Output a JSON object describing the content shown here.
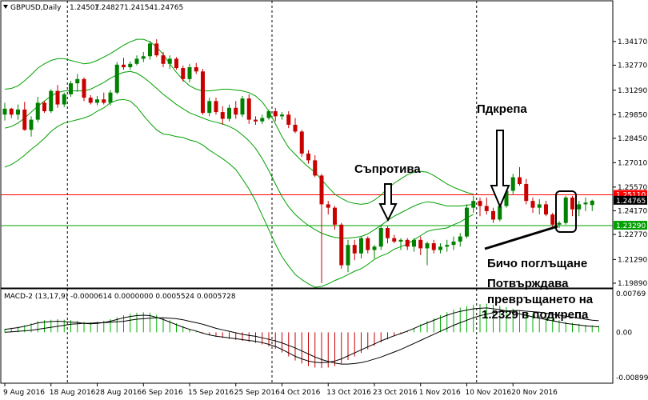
{
  "chart_data": [
    {
      "type": "candlestick",
      "header": {
        "symbol": "GBPUSD,Daily",
        "open": "1.24507",
        "high": "1.24827",
        "low": "1.24154",
        "close": "1.24765"
      },
      "ylim": [
        1.1989,
        1.3525
      ],
      "y_ticks": [
        "1.34170",
        "1.32770",
        "1.31290",
        "1.29850",
        "1.28450",
        "1.27010",
        "1.25570",
        "1.24170",
        "1.22770",
        "1.21290",
        "1.19890"
      ],
      "x_ticks": [
        "9 Aug 2016",
        "18 Aug 2016",
        "28 Aug 2016",
        "6 Sep 2016",
        "15 Sep 2016",
        "25 Sep 2016",
        "4 Oct 2016",
        "13 Oct 2016",
        "23 Oct 2016",
        "1 Nov 2016",
        "10 Nov 2016",
        "20 Nov 2016"
      ],
      "price_labels": [
        {
          "label": "1.25110",
          "value": 1.2511,
          "color": "#ff0000"
        },
        {
          "label": "1.24765",
          "value": 1.24765,
          "color": "#000000"
        },
        {
          "label": "1.23290",
          "value": 1.2329,
          "color": "#00a000"
        }
      ],
      "horizontal_lines": [
        {
          "value": 1.2511,
          "color": "#ff0000"
        },
        {
          "value": 1.2329,
          "color": "#00a000"
        }
      ],
      "bollinger": {
        "color": "#00a000",
        "upper": [
          1.3135,
          1.314,
          1.3155,
          1.3185,
          1.322,
          1.326,
          1.3285,
          1.3305,
          1.3315,
          1.3315,
          1.3305,
          1.3295,
          1.3285,
          1.329,
          1.3305,
          1.3325,
          1.3345,
          1.337,
          1.3395,
          1.3415,
          1.343,
          1.343,
          1.3415,
          1.3385,
          1.334,
          1.3285,
          1.3235,
          1.319,
          1.3155,
          1.3135,
          1.3125,
          1.3125,
          1.313,
          1.3135,
          1.3135,
          1.313,
          1.3125,
          1.3115,
          1.3095,
          1.306,
          1.3005,
          1.293,
          1.2855,
          1.279,
          1.275,
          1.271,
          1.2675,
          1.2645,
          1.26,
          1.2555,
          1.2515,
          1.249,
          1.247,
          1.246,
          1.2455,
          1.246,
          1.248,
          1.251,
          1.255,
          1.258,
          1.2605,
          1.263,
          1.2645,
          1.265,
          1.2645,
          1.2625,
          1.26,
          1.2575,
          1.2555,
          1.254,
          1.2525,
          1.2515
        ],
        "middle": [
          1.2905,
          1.2915,
          1.2935,
          1.2965,
          1.3,
          1.3035,
          1.3065,
          1.3095,
          1.3115,
          1.3125,
          1.3125,
          1.3125,
          1.3125,
          1.3135,
          1.3155,
          1.3175,
          1.32,
          1.322,
          1.3235,
          1.324,
          1.323,
          1.3205,
          1.3175,
          1.314,
          1.3105,
          1.3075,
          1.3045,
          1.302,
          1.2995,
          1.298,
          1.2965,
          1.295,
          1.294,
          1.293,
          1.2915,
          1.2895,
          1.2865,
          1.283,
          1.2785,
          1.2725,
          1.2655,
          1.2575,
          1.25,
          1.244,
          1.2395,
          1.236,
          1.233,
          1.2305,
          1.2285,
          1.227,
          1.226,
          1.2255,
          1.2255,
          1.226,
          1.2265,
          1.228,
          1.2305,
          1.233,
          1.236,
          1.2385,
          1.2405,
          1.2425,
          1.2445,
          1.246,
          1.247,
          1.2465,
          1.2455,
          1.2445,
          1.2445,
          1.2445,
          1.245,
          1.2455
        ],
        "lower": [
          1.2675,
          1.269,
          1.2715,
          1.2745,
          1.278,
          1.281,
          1.2845,
          1.2885,
          1.2915,
          1.2935,
          1.2945,
          1.2955,
          1.2965,
          1.298,
          1.3005,
          1.3025,
          1.3055,
          1.307,
          1.3075,
          1.3065,
          1.303,
          1.298,
          1.2935,
          1.2895,
          1.287,
          1.2865,
          1.2855,
          1.285,
          1.2835,
          1.2825,
          1.2805,
          1.2775,
          1.275,
          1.2725,
          1.2695,
          1.266,
          1.2605,
          1.2545,
          1.2475,
          1.239,
          1.2305,
          1.222,
          1.2145,
          1.209,
          1.204,
          1.201,
          1.1985,
          1.1965,
          1.197,
          1.1985,
          1.2005,
          1.202,
          1.204,
          1.206,
          1.2075,
          1.21,
          1.213,
          1.215,
          1.2165,
          1.219,
          1.2205,
          1.222,
          1.2245,
          1.227,
          1.2295,
          1.2305,
          1.231,
          1.2315,
          1.2335,
          1.235,
          1.2375,
          1.2395
        ]
      },
      "candles": [
        {
          "o": 1.2985,
          "h": 1.3055,
          "l": 1.295,
          "c": 1.302
        },
        {
          "o": 1.302,
          "h": 1.3025,
          "l": 1.2965,
          "c": 1.2985
        },
        {
          "o": 1.2985,
          "h": 1.3045,
          "l": 1.2955,
          "c": 1.3015
        },
        {
          "o": 1.3015,
          "h": 1.306,
          "l": 1.289,
          "c": 1.2895
        },
        {
          "o": 1.2895,
          "h": 1.2975,
          "l": 1.2855,
          "c": 1.2955
        },
        {
          "o": 1.2955,
          "h": 1.309,
          "l": 1.294,
          "c": 1.3055
        },
        {
          "o": 1.3055,
          "h": 1.3065,
          "l": 1.2995,
          "c": 1.3005
        },
        {
          "o": 1.3005,
          "h": 1.3135,
          "l": 1.2995,
          "c": 1.3125
        },
        {
          "o": 1.3125,
          "h": 1.316,
          "l": 1.3025,
          "c": 1.3045
        },
        {
          "o": 1.3045,
          "h": 1.3115,
          "l": 1.303,
          "c": 1.3105
        },
        {
          "o": 1.3105,
          "h": 1.3185,
          "l": 1.309,
          "c": 1.317
        },
        {
          "o": 1.317,
          "h": 1.3225,
          "l": 1.312,
          "c": 1.3195
        },
        {
          "o": 1.3195,
          "h": 1.3205,
          "l": 1.3065,
          "c": 1.3085
        },
        {
          "o": 1.3085,
          "h": 1.31,
          "l": 1.3045,
          "c": 1.3055
        },
        {
          "o": 1.3055,
          "h": 1.3095,
          "l": 1.304,
          "c": 1.3075
        },
        {
          "o": 1.3075,
          "h": 1.3115,
          "l": 1.3045,
          "c": 1.3055
        },
        {
          "o": 1.3055,
          "h": 1.313,
          "l": 1.304,
          "c": 1.3115
        },
        {
          "o": 1.3115,
          "h": 1.3295,
          "l": 1.3105,
          "c": 1.328
        },
        {
          "o": 1.328,
          "h": 1.332,
          "l": 1.325,
          "c": 1.3265
        },
        {
          "o": 1.3265,
          "h": 1.33,
          "l": 1.325,
          "c": 1.3285
        },
        {
          "o": 1.3285,
          "h": 1.3335,
          "l": 1.3275,
          "c": 1.3315
        },
        {
          "o": 1.3315,
          "h": 1.3355,
          "l": 1.3295,
          "c": 1.333
        },
        {
          "o": 1.333,
          "h": 1.342,
          "l": 1.331,
          "c": 1.3405
        },
        {
          "o": 1.3405,
          "h": 1.343,
          "l": 1.3325,
          "c": 1.3335
        },
        {
          "o": 1.3335,
          "h": 1.3355,
          "l": 1.3265,
          "c": 1.3285
        },
        {
          "o": 1.3285,
          "h": 1.3335,
          "l": 1.3255,
          "c": 1.3315
        },
        {
          "o": 1.3315,
          "h": 1.3325,
          "l": 1.325,
          "c": 1.326
        },
        {
          "o": 1.326,
          "h": 1.3275,
          "l": 1.318,
          "c": 1.3195
        },
        {
          "o": 1.3195,
          "h": 1.3285,
          "l": 1.3175,
          "c": 1.3265
        },
        {
          "o": 1.3265,
          "h": 1.329,
          "l": 1.3225,
          "c": 1.324
        },
        {
          "o": 1.324,
          "h": 1.3255,
          "l": 1.2985,
          "c": 1.2995
        },
        {
          "o": 1.2995,
          "h": 1.3085,
          "l": 1.2975,
          "c": 1.3065
        },
        {
          "o": 1.3065,
          "h": 1.3085,
          "l": 1.2985,
          "c": 1.3
        },
        {
          "o": 1.3,
          "h": 1.3035,
          "l": 1.2925,
          "c": 1.296
        },
        {
          "o": 1.296,
          "h": 1.3045,
          "l": 1.2945,
          "c": 1.3025
        },
        {
          "o": 1.3025,
          "h": 1.3065,
          "l": 1.296,
          "c": 1.2985
        },
        {
          "o": 1.2985,
          "h": 1.3095,
          "l": 1.297,
          "c": 1.308
        },
        {
          "o": 1.308,
          "h": 1.3105,
          "l": 1.293,
          "c": 1.2955
        },
        {
          "o": 1.2955,
          "h": 1.2975,
          "l": 1.2925,
          "c": 1.2945
        },
        {
          "o": 1.2945,
          "h": 1.2985,
          "l": 1.293,
          "c": 1.2965
        },
        {
          "o": 1.2965,
          "h": 1.3015,
          "l": 1.2955,
          "c": 1.3005
        },
        {
          "o": 1.3005,
          "h": 1.3025,
          "l": 1.2945,
          "c": 1.2975
        },
        {
          "o": 1.2975,
          "h": 1.3,
          "l": 1.2955,
          "c": 1.2985
        },
        {
          "o": 1.2985,
          "h": 1.3005,
          "l": 1.2905,
          "c": 1.2925
        },
        {
          "o": 1.2925,
          "h": 1.2965,
          "l": 1.2875,
          "c": 1.2885
        },
        {
          "o": 1.2885,
          "h": 1.2895,
          "l": 1.2735,
          "c": 1.2755
        },
        {
          "o": 1.2755,
          "h": 1.2775,
          "l": 1.2695,
          "c": 1.2715
        },
        {
          "o": 1.2715,
          "h": 1.2745,
          "l": 1.2615,
          "c": 1.2625
        },
        {
          "o": 1.2625,
          "h": 1.2635,
          "l": 1.1989,
          "c": 1.2455
        },
        {
          "o": 1.2455,
          "h": 1.2475,
          "l": 1.2395,
          "c": 1.2435
        },
        {
          "o": 1.2435,
          "h": 1.2445,
          "l": 1.2305,
          "c": 1.2335
        },
        {
          "o": 1.2335,
          "h": 1.2345,
          "l": 1.2075,
          "c": 1.2095
        },
        {
          "o": 1.2095,
          "h": 1.2245,
          "l": 1.2055,
          "c": 1.2215
        },
        {
          "o": 1.2215,
          "h": 1.2245,
          "l": 1.2125,
          "c": 1.2165
        },
        {
          "o": 1.2165,
          "h": 1.2265,
          "l": 1.2135,
          "c": 1.2255
        },
        {
          "o": 1.2255,
          "h": 1.2265,
          "l": 1.2165,
          "c": 1.2185
        },
        {
          "o": 1.2185,
          "h": 1.2215,
          "l": 1.2135,
          "c": 1.2205
        },
        {
          "o": 1.2205,
          "h": 1.2335,
          "l": 1.2185,
          "c": 1.2315
        },
        {
          "o": 1.2315,
          "h": 1.2325,
          "l": 1.2225,
          "c": 1.2255
        },
        {
          "o": 1.2255,
          "h": 1.2275,
          "l": 1.2225,
          "c": 1.2235
        },
        {
          "o": 1.2235,
          "h": 1.2255,
          "l": 1.2185,
          "c": 1.2245
        },
        {
          "o": 1.2245,
          "h": 1.2255,
          "l": 1.2185,
          "c": 1.2205
        },
        {
          "o": 1.2205,
          "h": 1.2255,
          "l": 1.2175,
          "c": 1.2245
        },
        {
          "o": 1.2245,
          "h": 1.2265,
          "l": 1.2155,
          "c": 1.2195
        },
        {
          "o": 1.2195,
          "h": 1.2235,
          "l": 1.2095,
          "c": 1.2225
        },
        {
          "o": 1.2225,
          "h": 1.2245,
          "l": 1.2165,
          "c": 1.2185
        },
        {
          "o": 1.2185,
          "h": 1.2225,
          "l": 1.2165,
          "c": 1.2205
        },
        {
          "o": 1.2205,
          "h": 1.2245,
          "l": 1.2175,
          "c": 1.2215
        },
        {
          "o": 1.2215,
          "h": 1.2265,
          "l": 1.2185,
          "c": 1.2235
        },
        {
          "o": 1.2235,
          "h": 1.2285,
          "l": 1.2205,
          "c": 1.2265
        },
        {
          "o": 1.2265,
          "h": 1.2455,
          "l": 1.2255,
          "c": 1.2435
        },
        {
          "o": 1.2435,
          "h": 1.2505,
          "l": 1.2405,
          "c": 1.2475
        },
        {
          "o": 1.2475,
          "h": 1.2495,
          "l": 1.2385,
          "c": 1.2445
        },
        {
          "o": 1.2445,
          "h": 1.2495,
          "l": 1.2395,
          "c": 1.2415
        },
        {
          "o": 1.2415,
          "h": 1.2435,
          "l": 1.2345,
          "c": 1.2365
        },
        {
          "o": 1.2365,
          "h": 1.2465,
          "l": 1.2355,
          "c": 1.2445
        },
        {
          "o": 1.2445,
          "h": 1.2545,
          "l": 1.2435,
          "c": 1.2535
        },
        {
          "o": 1.2535,
          "h": 1.2635,
          "l": 1.2515,
          "c": 1.2615
        },
        {
          "o": 1.2615,
          "h": 1.2675,
          "l": 1.2565,
          "c": 1.2575
        },
        {
          "o": 1.2575,
          "h": 1.2605,
          "l": 1.2455,
          "c": 1.2475
        },
        {
          "o": 1.2475,
          "h": 1.2495,
          "l": 1.2405,
          "c": 1.2435
        },
        {
          "o": 1.2435,
          "h": 1.2485,
          "l": 1.2395,
          "c": 1.2455
        },
        {
          "o": 1.2455,
          "h": 1.2475,
          "l": 1.2385,
          "c": 1.2395
        },
        {
          "o": 1.2395,
          "h": 1.2405,
          "l": 1.2315,
          "c": 1.2335
        },
        {
          "o": 1.2335,
          "h": 1.2355,
          "l": 1.2315,
          "c": 1.2345
        },
        {
          "o": 1.2345,
          "h": 1.2505,
          "l": 1.2335,
          "c": 1.2495
        },
        {
          "o": 1.2495,
          "h": 1.2505,
          "l": 1.2385,
          "c": 1.2425
        },
        {
          "o": 1.2425,
          "h": 1.2475,
          "l": 1.2385,
          "c": 1.2455
        },
        {
          "o": 1.2455,
          "h": 1.2495,
          "l": 1.2415,
          "c": 1.2465
        },
        {
          "o": 1.24507,
          "h": 1.24827,
          "l": 1.24154,
          "c": 1.24765
        }
      ]
    },
    {
      "type": "bar+line",
      "title": "MACD-2 (13,17,9) -0.0000614 0.0000000 0.0005524 0.0005728",
      "ylim": [
        -0.00899,
        0.00769
      ],
      "y_ticks": [
        "0.00769",
        "0.00",
        "-0.00899"
      ],
      "histogram": [
        0.0007,
        0.0009,
        0.0011,
        0.0014,
        0.0018,
        0.0022,
        0.0024,
        0.0025,
        0.0026,
        0.0025,
        0.0024,
        0.0023,
        0.0021,
        0.002,
        0.0021,
        0.0023,
        0.0026,
        0.003,
        0.0034,
        0.0037,
        0.0039,
        0.004,
        0.0039,
        0.0035,
        0.003,
        0.0024,
        0.0018,
        0.0012,
        0.0007,
        0.0003,
        -0.0002,
        -0.0006,
        -0.0009,
        -0.0011,
        -0.0013,
        -0.0015,
        -0.0017,
        -0.0019,
        -0.0021,
        -0.0024,
        -0.0028,
        -0.0033,
        -0.004,
        -0.0048,
        -0.0056,
        -0.0062,
        -0.0067,
        -0.007,
        -0.0071,
        -0.007,
        -0.0067,
        -0.0062,
        -0.0055,
        -0.0048,
        -0.0041,
        -0.0034,
        -0.0027,
        -0.002,
        -0.0014,
        -0.0008,
        -0.0003,
        0.0003,
        0.0009,
        0.0016,
        0.0022,
        0.0028,
        0.0034,
        0.004,
        0.0045,
        0.0049,
        0.0052,
        0.0055,
        0.0056,
        0.0057,
        0.0055,
        0.0053,
        0.005,
        0.0047,
        0.0043,
        0.004,
        0.0036,
        0.0033,
        0.003,
        0.0027,
        0.0024,
        0.0021,
        0.0019,
        0.0017,
        0.0015,
        0.0014,
        0.0013
      ],
      "signal": [
        0.0,
        0.0001,
        0.0002,
        0.0003,
        0.0004,
        0.0006,
        0.0008,
        0.001,
        0.0012,
        0.0014,
        0.0016,
        0.0017,
        0.0018,
        0.0018,
        0.0019,
        0.0019,
        0.002,
        0.0021,
        0.0022,
        0.0024,
        0.0026,
        0.0027,
        0.0028,
        0.0029,
        0.0029,
        0.0028,
        0.0027,
        0.0025,
        0.0022,
        0.0019,
        0.0016,
        0.0012,
        0.0008,
        0.0005,
        0.0002,
        -0.0001,
        -0.0004,
        -0.0006,
        -0.0008,
        -0.0011,
        -0.0014,
        -0.0017,
        -0.0021,
        -0.0026,
        -0.0031,
        -0.0037,
        -0.0043,
        -0.0049,
        -0.0054,
        -0.0058,
        -0.0061,
        -0.0063,
        -0.0063,
        -0.0062,
        -0.006,
        -0.0057,
        -0.0053,
        -0.0049,
        -0.0044,
        -0.0039,
        -0.0034,
        -0.0028,
        -0.0022,
        -0.0016,
        -0.001,
        -0.0004,
        0.0002,
        0.0008,
        0.0014,
        0.0019,
        0.0024,
        0.0029,
        0.0033,
        0.0036,
        0.0039,
        0.0041,
        0.0042,
        0.0043,
        0.0043,
        0.0042,
        0.0041,
        0.004,
        0.0038,
        0.0036,
        0.0034,
        0.0032,
        0.003,
        0.0028,
        0.0026,
        0.0024,
        0.0023
      ]
    }
  ],
  "annotations": [
    {
      "text": "Съпротива"
    },
    {
      "text": "Пдкрепа"
    },
    {
      "text": "Бичо поглъщане"
    },
    {
      "text": "Потвърждава"
    },
    {
      "text": "превръщането на"
    },
    {
      "text": "1.2329 в подкрепа"
    }
  ]
}
